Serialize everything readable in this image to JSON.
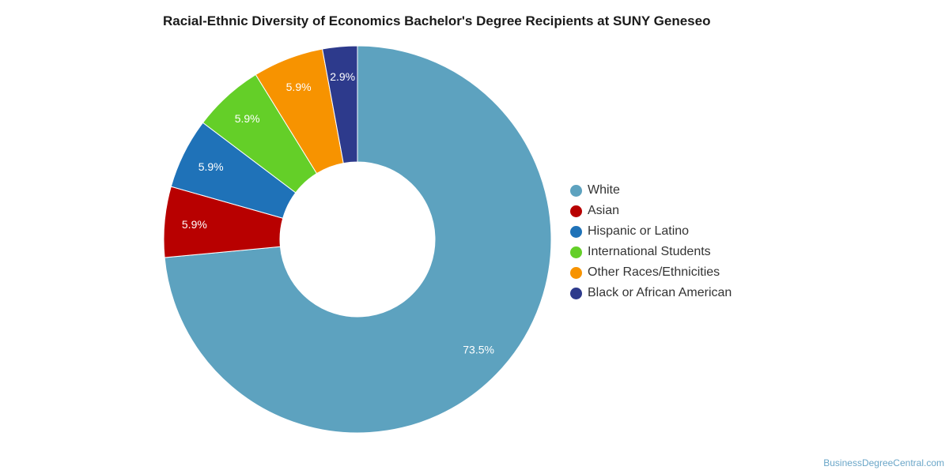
{
  "chart_data": {
    "type": "pie",
    "donut": true,
    "title": "Racial-Ethnic Diversity of Economics Bachelor's Degree Recipients at SUNY Geneseo",
    "slices": [
      {
        "name": "White",
        "value": 73.5,
        "label": "73.5%",
        "color": "#5da2bf"
      },
      {
        "name": "Asian",
        "value": 5.9,
        "label": "5.9%",
        "color": "#b80000"
      },
      {
        "name": "Hispanic or Latino",
        "value": 5.9,
        "label": "5.9%",
        "color": "#1f72b8"
      },
      {
        "name": "International Students",
        "value": 5.9,
        "label": "5.9%",
        "color": "#64cf28"
      },
      {
        "name": "Other Races/Ethnicities",
        "value": 5.9,
        "label": "5.9%",
        "color": "#f79300"
      },
      {
        "name": "Black or African American",
        "value": 2.9,
        "label": "2.9%",
        "color": "#2d3a8c"
      }
    ],
    "legend_position": "right"
  },
  "watermark": "BusinessDegreeCentral.com"
}
